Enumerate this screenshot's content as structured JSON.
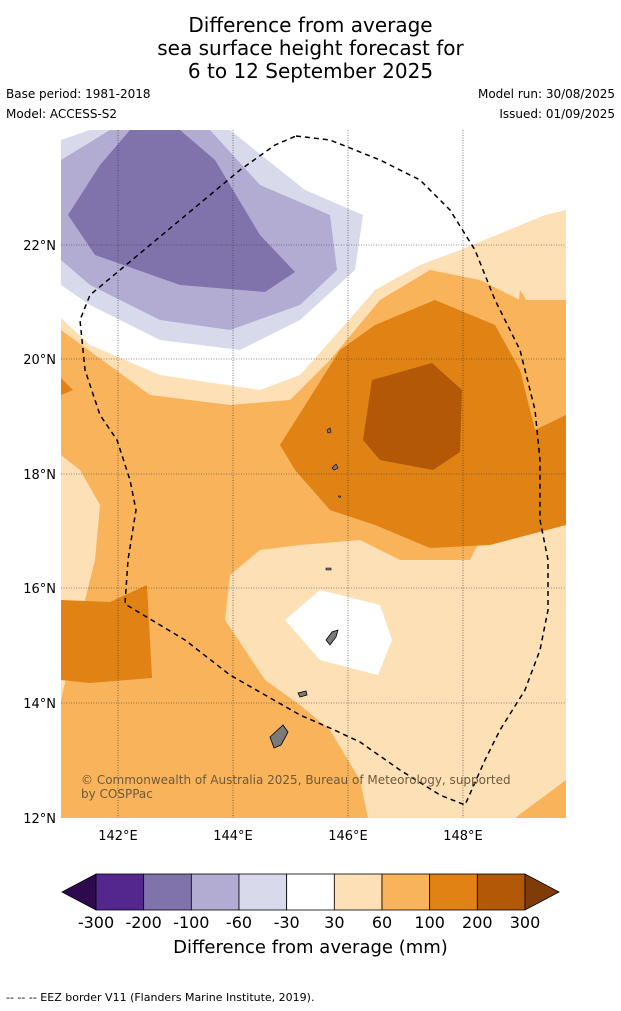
{
  "title": {
    "line1": "Difference from average",
    "line2": "sea surface height forecast for",
    "line3": "6 to 12 September 2025"
  },
  "meta": {
    "base_period": "Base period: 1981-2018",
    "model": "Model: ACCESS-S2",
    "model_run": "Model run: 30/08/2025",
    "issued": "Issued: 01/09/2025"
  },
  "map": {
    "lon_ticks": [
      "142°E",
      "144°E",
      "146°E",
      "148°E"
    ],
    "lat_ticks": [
      "22°N",
      "20°N",
      "18°N",
      "16°N",
      "14°N",
      "12°N"
    ],
    "copyright": "© Commonwealth of Australia 2025, Bureau of Meteorology, supported by COSPPac"
  },
  "colorbar": {
    "ticks": [
      "-300",
      "-200",
      "-100",
      "-60",
      "-30",
      "30",
      "60",
      "100",
      "200",
      "300"
    ],
    "colors": [
      "#2d0a4e",
      "#54278f",
      "#8073ac",
      "#b2abd2",
      "#d8daeb",
      "#ffffff",
      "#fee0b6",
      "#f8b35b",
      "#e08214",
      "#b35806",
      "#7f3b08"
    ],
    "label": "Difference from average (mm)"
  },
  "footer": "--  --  -- EEZ border V11 (Flanders Marine Institute, 2019)."
}
